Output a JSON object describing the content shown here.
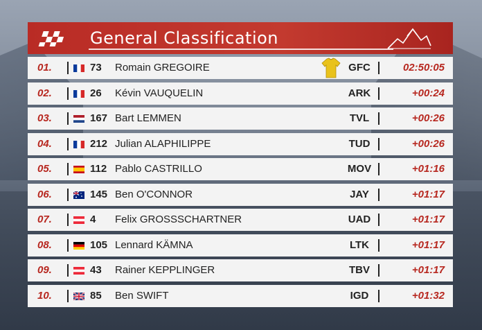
{
  "header": {
    "title": "General Classification",
    "logo": "checkered-flag-logo",
    "decoration": "mountain-peaks-icon"
  },
  "colors": {
    "header_red": "#c33a2f",
    "position_red": "#b7271f",
    "row_bg": "#f3f3f3",
    "leader_jersey": "#e9c21c"
  },
  "rows": [
    {
      "pos": "01.",
      "flag": "FR",
      "bib": "73",
      "name": "Romain GREGOIRE",
      "jersey": "yellow-jersey-icon",
      "team": "GFC",
      "time": "02:50:05"
    },
    {
      "pos": "02.",
      "flag": "FR",
      "bib": "26",
      "name": "Kévin VAUQUELIN",
      "team": "ARK",
      "time": "+00:24"
    },
    {
      "pos": "03.",
      "flag": "NL",
      "bib": "167",
      "name": "Bart LEMMEN",
      "team": "TVL",
      "time": "+00:26"
    },
    {
      "pos": "04.",
      "flag": "FR",
      "bib": "212",
      "name": "Julian ALAPHILIPPE",
      "team": "TUD",
      "time": "+00:26"
    },
    {
      "pos": "05.",
      "flag": "ES",
      "bib": "112",
      "name": "Pablo CASTRILLO",
      "team": "MOV",
      "time": "+01:16"
    },
    {
      "pos": "06.",
      "flag": "AU",
      "bib": "145",
      "name": "Ben O'CONNOR",
      "team": "JAY",
      "time": "+01:17"
    },
    {
      "pos": "07.",
      "flag": "AT",
      "bib": "4",
      "name": "Felix GROSSSCHARTNER",
      "team": "UAD",
      "time": "+01:17"
    },
    {
      "pos": "08.",
      "flag": "DE",
      "bib": "105",
      "name": "Lennard KÄMNA",
      "team": "LTK",
      "time": "+01:17"
    },
    {
      "pos": "09.",
      "flag": "AT",
      "bib": "43",
      "name": "Rainer KEPPLINGER",
      "team": "TBV",
      "time": "+01:17"
    },
    {
      "pos": "10.",
      "flag": "GB",
      "bib": "85",
      "name": "Ben SWIFT",
      "team": "IGD",
      "time": "+01:32"
    }
  ]
}
